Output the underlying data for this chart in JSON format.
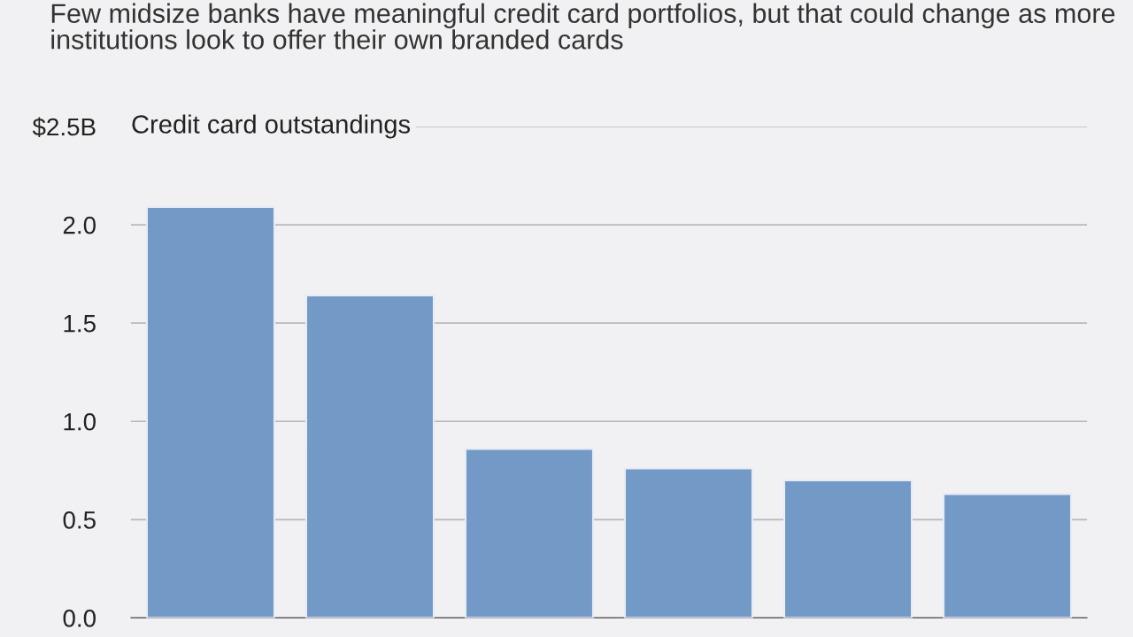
{
  "chart_data": {
    "type": "bar",
    "title": "Few midsize banks have meaningful credit card portfolios, but that could change as more institutions look to offer their own branded cards",
    "ylabel": "Credit card outstandings",
    "categories": [
      null,
      null,
      null,
      null,
      null,
      null
    ],
    "values": [
      2.09,
      1.64,
      0.86,
      0.76,
      0.7,
      0.63
    ],
    "color": "#7399c6",
    "ylim": [
      0,
      2.5
    ],
    "yticks": [
      {
        "value": 0,
        "label": "0.0"
      },
      {
        "value": 0.5,
        "label": "0.5"
      },
      {
        "value": 1.0,
        "label": "1.0"
      },
      {
        "value": 1.5,
        "label": "1.5"
      },
      {
        "value": 2.0,
        "label": "2.0"
      },
      {
        "value": 2.5,
        "label": "$2.5B"
      }
    ],
    "grid": "y"
  }
}
